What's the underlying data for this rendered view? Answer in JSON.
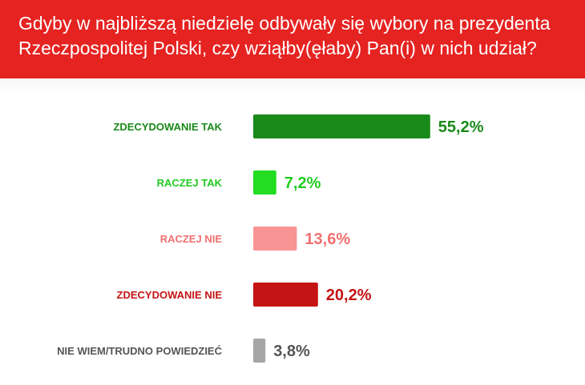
{
  "chart_data": {
    "type": "bar",
    "orientation": "horizontal",
    "title_lines": [
      "Gdyby w najbliższą niedzielę odbywały się wybory na prezydenta",
      "Rzeczpospolitej Polski, czy wziąłby(ęłaby) Pan(i) w nich udział?"
    ],
    "categories": [
      "ZDECYDOWANIE TAK",
      "RACZEJ TAK",
      "RACZEJ NIE",
      "ZDECYDOWANIE NIE",
      "NIE WIEM/TRUDNO POWIEDZIEĆ"
    ],
    "values": [
      55.2,
      7.2,
      13.6,
      20.2,
      3.8
    ],
    "value_labels": [
      "55,2%",
      "7,2%",
      "13,6%",
      "20,2%",
      "3,8%"
    ],
    "unit": "%",
    "colors": [
      "#1a8a1a",
      "#22dd22",
      "#f89494",
      "#c41414",
      "#a6a6a6"
    ],
    "label_colors": [
      "#1a8a1a",
      "#22cc22",
      "#f07070",
      "#c41414",
      "#555555"
    ],
    "xlim": [
      0,
      100
    ],
    "grid": false,
    "legend": "none"
  }
}
